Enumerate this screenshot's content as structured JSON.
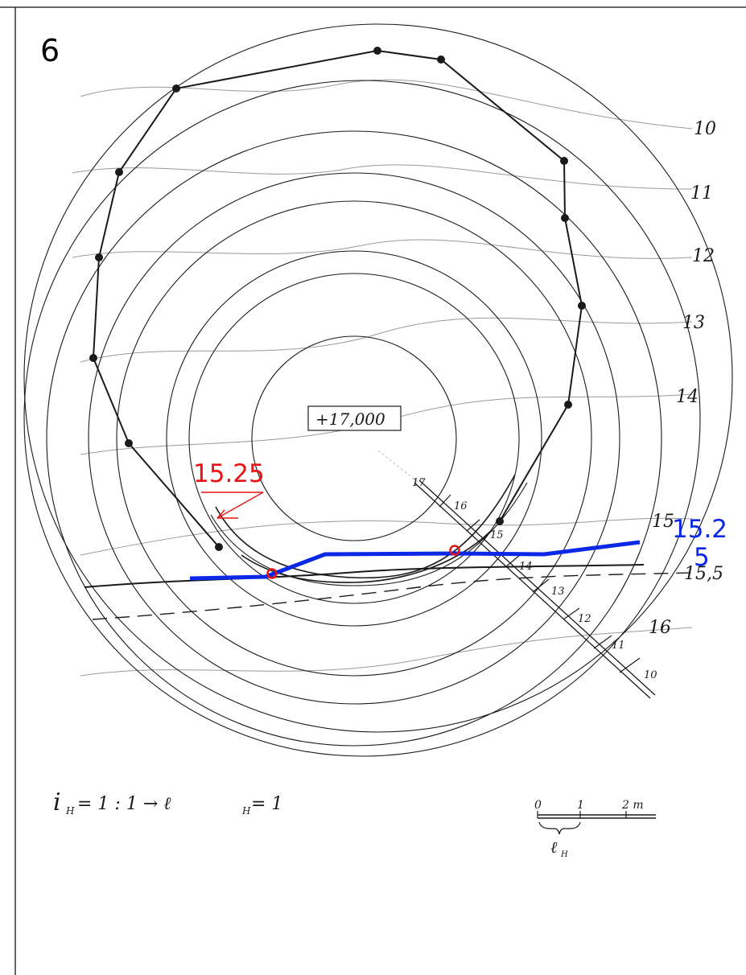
{
  "figure_number": "6",
  "summit_label": "+17,000",
  "contour_labels": {
    "c10": "10",
    "c11": "11",
    "c12": "12",
    "c13": "13",
    "c14": "14",
    "c15": "15",
    "c155": "15,5",
    "c16": "16"
  },
  "profile_ticks": [
    "17",
    "16",
    "15",
    "14",
    "13",
    "12",
    "11",
    "10"
  ],
  "annotation_left": "15.25",
  "annotation_right": "15.2",
  "annotation_right_wrap": "5",
  "formula": "i",
  "formula_sub": "H",
  "formula_mid": "= 1 : 1  →  ℓ",
  "formula_sub2": "H",
  "formula_end": "= 1",
  "scale": {
    "t0": "0",
    "t1": "1",
    "t2": "2 m",
    "label": "ℓ",
    "label_sub": "H"
  },
  "colors": {
    "blue": "#0a28e6",
    "red": "#e61414",
    "ink": "#1a1a1a",
    "pencil": "#9a9a9a"
  }
}
